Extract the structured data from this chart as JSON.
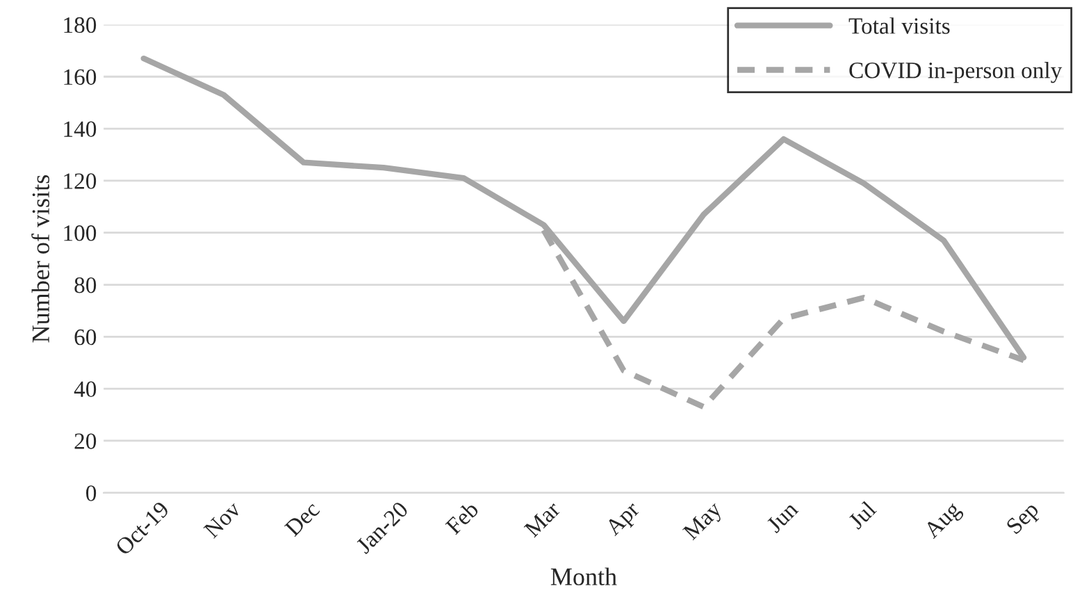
{
  "chart_data": {
    "type": "line",
    "xlabel": "Month",
    "ylabel": "Number of visits",
    "categories": [
      "Oct-19",
      "Nov",
      "Dec",
      "Jan-20",
      "Feb",
      "Mar",
      "Apr",
      "May",
      "Jun",
      "Jul",
      "Aug",
      "Sep"
    ],
    "series": [
      {
        "name": "Total visits",
        "color": "#a6a6a6",
        "line_style": "solid",
        "values": [
          167,
          153,
          127,
          125,
          121,
          103,
          66,
          107,
          136,
          119,
          97,
          52
        ]
      },
      {
        "name": "COVID in-person only",
        "color": "#a6a6a6",
        "line_style": "dashed",
        "values": [
          null,
          null,
          null,
          null,
          null,
          101,
          47,
          33,
          67,
          75,
          62,
          51
        ]
      }
    ],
    "ylim": [
      0,
      180
    ],
    "yticks": [
      0,
      20,
      40,
      60,
      80,
      100,
      120,
      140,
      160,
      180
    ],
    "grid": "y",
    "legend": "top right",
    "marker": "none"
  }
}
